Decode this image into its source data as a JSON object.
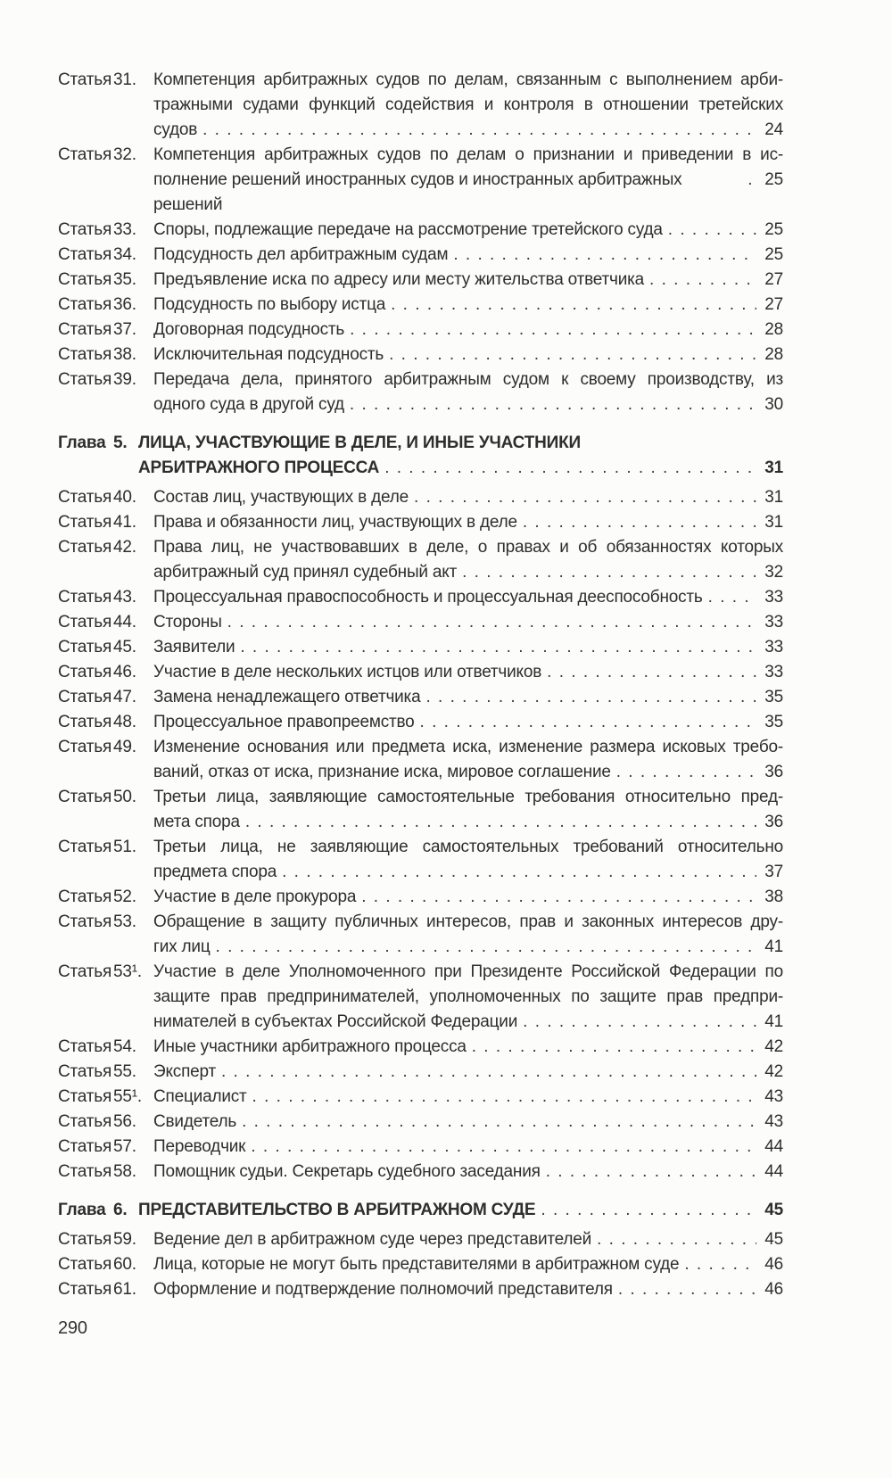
{
  "page": {
    "number": "290"
  },
  "toc": {
    "entries": [
      {
        "kind": "article",
        "label": "Статья",
        "num": "31.",
        "body": [
          "Компетенция арбитражных судов по делам, связанным с выполнением арби-",
          "тражными судами функций содействия и контроля в отношении третейских"
        ],
        "last": "судов",
        "page": "24"
      },
      {
        "kind": "article",
        "label": "Статья",
        "num": "32.",
        "body": [
          "Компетенция арбитражных судов по делам о признании и приведении в ис-"
        ],
        "last": "полнение решений иностранных судов и иностранных арбитражных решений",
        "page": "25"
      },
      {
        "kind": "article",
        "label": "Статья",
        "num": "33.",
        "body": [],
        "last": "Споры, подлежащие передаче на рассмотрение третейского суда",
        "page": "25"
      },
      {
        "kind": "article",
        "label": "Статья",
        "num": "34.",
        "body": [],
        "last": "Подсудность дел арбитражным судам",
        "page": "25"
      },
      {
        "kind": "article",
        "label": "Статья",
        "num": "35.",
        "body": [],
        "last": "Предъявление иска по адресу или месту жительства ответчика",
        "page": "27"
      },
      {
        "kind": "article",
        "label": "Статья",
        "num": "36.",
        "body": [],
        "last": "Подсудность по выбору истца",
        "page": "27"
      },
      {
        "kind": "article",
        "label": "Статья",
        "num": "37.",
        "body": [],
        "last": "Договорная подсудность",
        "page": "28"
      },
      {
        "kind": "article",
        "label": "Статья",
        "num": "38.",
        "body": [],
        "last": "Исключительная подсудность",
        "page": "28"
      },
      {
        "kind": "article",
        "label": "Статья",
        "num": "39.",
        "body": [
          "Передача дела, принятого арбитражным судом к своему производству, из"
        ],
        "last": "одного суда в другой суд",
        "page": "30"
      },
      {
        "kind": "chapter",
        "label": "Глава",
        "num": "5.",
        "body": [
          "ЛИЦА, УЧАСТВУЮЩИЕ В ДЕЛЕ, И ИНЫЕ УЧАСТНИКИ"
        ],
        "last": "АРБИТРАЖНОГО ПРОЦЕССА",
        "page": "31"
      },
      {
        "kind": "article",
        "label": "Статья",
        "num": "40.",
        "body": [],
        "last": "Состав лиц, участвующих в деле",
        "page": "31"
      },
      {
        "kind": "article",
        "label": "Статья",
        "num": "41.",
        "body": [],
        "last": "Права и обязанности лиц, участвующих в деле",
        "page": "31"
      },
      {
        "kind": "article",
        "label": "Статья",
        "num": "42.",
        "body": [
          "Права лиц, не участвовавших в деле, о правах и об обязанностях которых"
        ],
        "last": "арбитражный суд принял судебный акт",
        "page": "32"
      },
      {
        "kind": "article",
        "label": "Статья",
        "num": "43.",
        "body": [],
        "last": "Процессуальная правоспособность и процессуальная дееспособность",
        "page": "33"
      },
      {
        "kind": "article",
        "label": "Статья",
        "num": "44.",
        "body": [],
        "last": "Стороны",
        "page": "33"
      },
      {
        "kind": "article",
        "label": "Статья",
        "num": "45.",
        "body": [],
        "last": "Заявители",
        "page": "33"
      },
      {
        "kind": "article",
        "label": "Статья",
        "num": "46.",
        "body": [],
        "last": "Участие в деле нескольких истцов или ответчиков",
        "page": "33"
      },
      {
        "kind": "article",
        "label": "Статья",
        "num": "47.",
        "body": [],
        "last": "Замена ненадлежащего ответчика",
        "page": "35"
      },
      {
        "kind": "article",
        "label": "Статья",
        "num": "48.",
        "body": [],
        "last": "Процессуальное правопреемство",
        "page": "35"
      },
      {
        "kind": "article",
        "label": "Статья",
        "num": "49.",
        "body": [
          "Изменение основания или предмета иска, изменение размера исковых требо-"
        ],
        "last": "ваний, отказ от иска, признание иска, мировое соглашение",
        "page": "36"
      },
      {
        "kind": "article",
        "label": "Статья",
        "num": "50.",
        "body": [
          "Третьи лица, заявляющие самостоятельные требования относительно пред-"
        ],
        "last": "мета спора",
        "page": "36"
      },
      {
        "kind": "article",
        "label": "Статья",
        "num": "51.",
        "body": [
          "Третьи лица, не заявляющие самостоятельных требований относительно"
        ],
        "last": "предмета спора",
        "page": "37"
      },
      {
        "kind": "article",
        "label": "Статья",
        "num": "52.",
        "body": [],
        "last": "Участие в деле прокурора",
        "page": "38"
      },
      {
        "kind": "article",
        "label": "Статья",
        "num": "53.",
        "body": [
          "Обращение в защиту публичных интересов, прав и законных интересов дру-"
        ],
        "last": "гих лиц",
        "page": "41"
      },
      {
        "kind": "article",
        "label": "Статья",
        "num": "53¹.",
        "body": [
          "Участие в деле Уполномоченного при Президенте Российской Федерации по",
          "защите прав предпринимателей, уполномоченных по защите прав предпри-"
        ],
        "last": "нимателей в субъектах Российской Федерации",
        "page": "41"
      },
      {
        "kind": "article",
        "label": "Статья",
        "num": "54.",
        "body": [],
        "last": "Иные участники арбитражного процесса",
        "page": "42"
      },
      {
        "kind": "article",
        "label": "Статья",
        "num": "55.",
        "body": [],
        "last": "Эксперт",
        "page": "42"
      },
      {
        "kind": "article",
        "label": "Статья",
        "num": "55¹.",
        "body": [],
        "last": "Специалист",
        "page": "43"
      },
      {
        "kind": "article",
        "label": "Статья",
        "num": "56.",
        "body": [],
        "last": "Свидетель",
        "page": "43"
      },
      {
        "kind": "article",
        "label": "Статья",
        "num": "57.",
        "body": [],
        "last": "Переводчик",
        "page": "44"
      },
      {
        "kind": "article",
        "label": "Статья",
        "num": "58.",
        "body": [],
        "last": "Помощник судьи. Секретарь судебного заседания",
        "page": "44"
      },
      {
        "kind": "chapter",
        "label": "Глава",
        "num": "6.",
        "body": [],
        "last": "ПРЕДСТАВИТЕЛЬСТВО В АРБИТРАЖНОМ СУДЕ",
        "page": "45"
      },
      {
        "kind": "article",
        "label": "Статья",
        "num": "59.",
        "body": [],
        "last": "Ведение дел в арбитражном суде через представителей",
        "page": "45"
      },
      {
        "kind": "article",
        "label": "Статья",
        "num": "60.",
        "body": [],
        "last": "Лица, которые не могут быть представителями в арбитражном суде",
        "page": "46"
      },
      {
        "kind": "article",
        "label": "Статья",
        "num": "61.",
        "body": [],
        "last": "Оформление и подтверждение полномочий представителя",
        "page": "46"
      }
    ]
  }
}
